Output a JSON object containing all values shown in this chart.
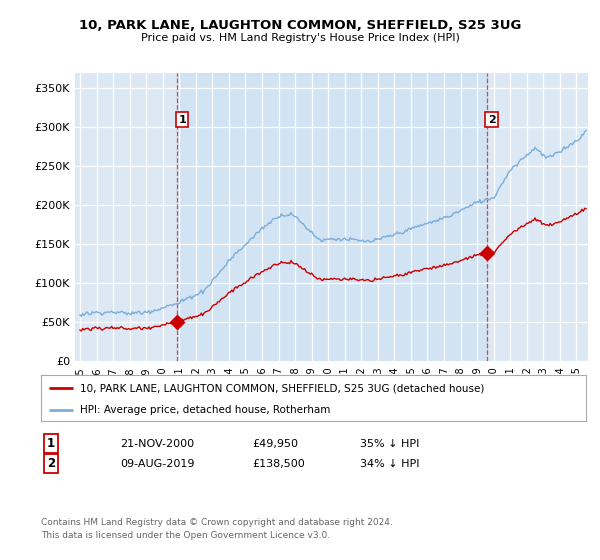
{
  "title": "10, PARK LANE, LAUGHTON COMMON, SHEFFIELD, S25 3UG",
  "subtitle": "Price paid vs. HM Land Registry's House Price Index (HPI)",
  "ylabel_ticks": [
    "£0",
    "£50K",
    "£100K",
    "£150K",
    "£200K",
    "£250K",
    "£300K",
    "£350K"
  ],
  "ytick_values": [
    0,
    50000,
    100000,
    150000,
    200000,
    250000,
    300000,
    350000
  ],
  "ylim": [
    0,
    370000
  ],
  "xlim_start": 1994.7,
  "xlim_end": 2025.7,
  "color_red": "#cc0000",
  "color_blue": "#7aaedb",
  "color_dashed_red": "#cc0000",
  "t1": 2000.875,
  "t2": 2019.583,
  "p1": 49950,
  "p2": 138500,
  "legend_line1": "10, PARK LANE, LAUGHTON COMMON, SHEFFIELD, S25 3UG (detached house)",
  "legend_line2": "HPI: Average price, detached house, Rotherham",
  "annotation1_date": "21-NOV-2000",
  "annotation1_price": "£49,950",
  "annotation1_hpi": "35% ↓ HPI",
  "annotation2_date": "09-AUG-2019",
  "annotation2_price": "£138,500",
  "annotation2_hpi": "34% ↓ HPI",
  "footer": "Contains HM Land Registry data © Crown copyright and database right 2024.\nThis data is licensed under the Open Government Licence v3.0.",
  "background_color": "#ffffff",
  "plot_bg_color": "#dce9f5"
}
